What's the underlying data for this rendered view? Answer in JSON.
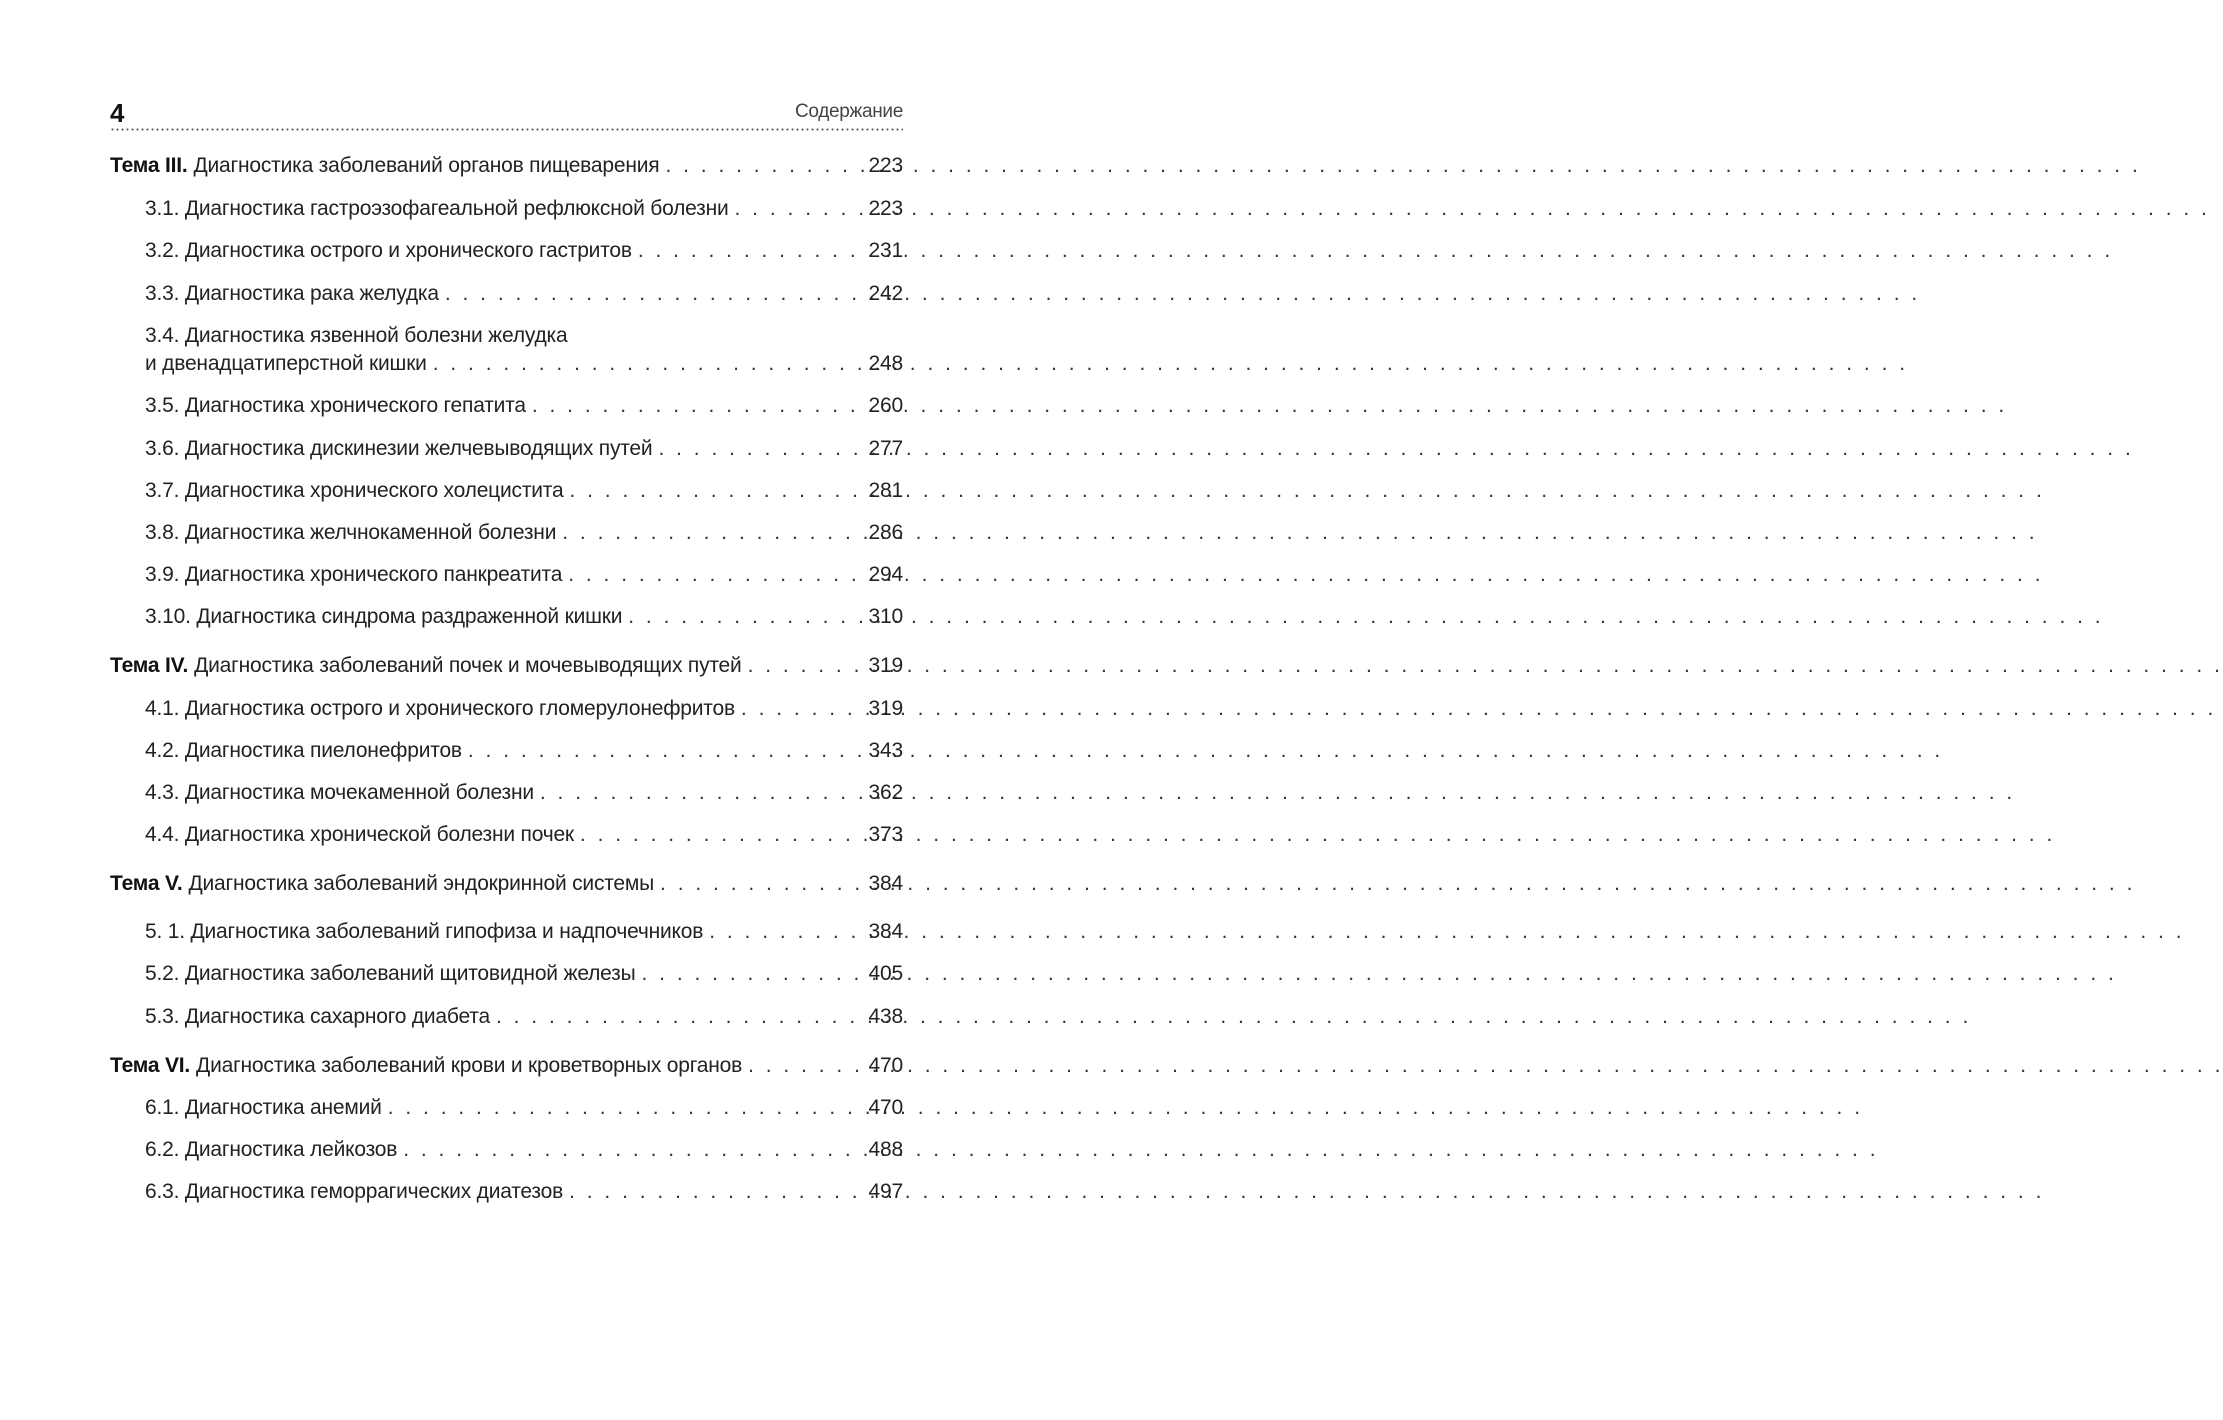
{
  "header": {
    "page_number": "4",
    "running_title": "Содержание"
  },
  "toc": [
    {
      "label": "Тема III.",
      "title": "Диагностика заболеваний органов пищеварения",
      "page": "223",
      "items": [
        {
          "title": "3.1. Диагностика гастроэзофагеальной рефлюксной болезни",
          "page": "223"
        },
        {
          "title": "3.2. Диагностика острого и хронического гастритов",
          "page": "231"
        },
        {
          "title": "3.3. Диагностика рака желудка",
          "page": "242"
        },
        {
          "title": "3.4. Диагностика язвенной болезни желудка",
          "title_cont": "и двенадцатиперстной кишки",
          "page": "248"
        },
        {
          "title": "3.5. Диагностика хронического гепатита",
          "page": "260"
        },
        {
          "title": "3.6. Диагностика дискинезии желчевыводящих путей",
          "page": "277"
        },
        {
          "title": "3.7. Диагностика хронического холецистита",
          "page": "281"
        },
        {
          "title": "3.8. Диагностика желчнокаменной болезни",
          "page": "286"
        },
        {
          "title": "3.9. Диагностика хронического панкреатита",
          "page": "294"
        },
        {
          "title": "3.10. Диагностика синдрома раздраженной кишки",
          "page": "310"
        }
      ]
    },
    {
      "label": "Тема IV.",
      "title": "Диагностика заболеваний почек и мочевыводящих путей",
      "page": "319",
      "items": [
        {
          "title": "4.1. Диагностика острого и хронического гломерулонефритов",
          "page": "319"
        },
        {
          "title": "4.2. Диагностика пиелонефритов",
          "page": "343"
        },
        {
          "title": "4.3. Диагностика мочекаменной болезни",
          "page": "362"
        },
        {
          "title": "4.4. Диагностика хронической болезни почек",
          "page": "373"
        }
      ]
    },
    {
      "label": "Тема V.",
      "title": "Диагностика заболеваний эндокринной системы",
      "page": "384",
      "items": [
        {
          "title": "5. 1. Диагностика заболеваний гипофиза и надпочечников",
          "page": "384"
        },
        {
          "title": "5.2. Диагностика заболеваний щитовидной железы",
          "page": "405"
        },
        {
          "title": "5.3. Диагностика сахарного диабета",
          "page": "438"
        }
      ]
    },
    {
      "label": "Тема VI.",
      "title": "Диагностика заболеваний крови и кроветворных органов",
      "page": "470",
      "items": [
        {
          "title": "6.1. Диагностика анемий",
          "page": "470"
        },
        {
          "title": "6.2. Диагностика лейкозов",
          "page": "488"
        },
        {
          "title": "6.3. Диагностика геморрагических диатезов",
          "page": "497"
        }
      ]
    }
  ]
}
